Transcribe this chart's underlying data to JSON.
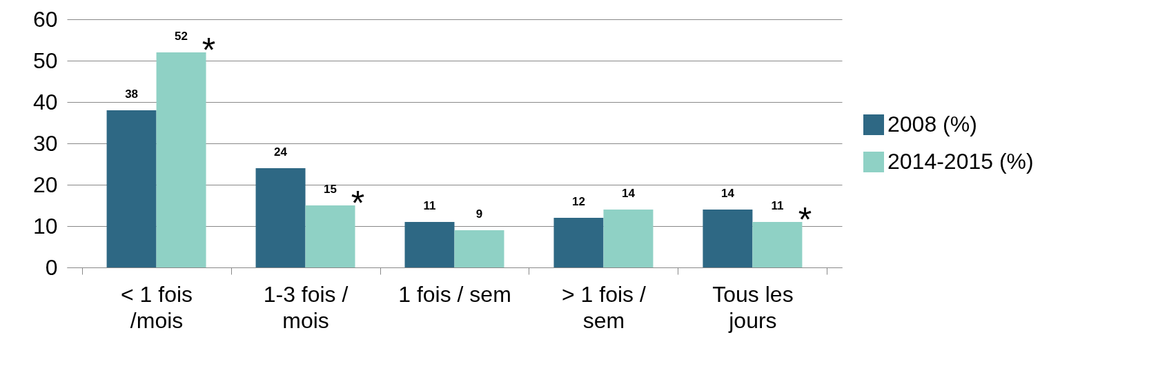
{
  "chart_data": {
    "type": "bar",
    "categories": [
      "< 1 fois /mois",
      "1-3 fois / mois",
      "1 fois / sem",
      "> 1 fois / sem",
      "Tous les jours"
    ],
    "series": [
      {
        "name": "2008 (%)",
        "color": "#2e6884",
        "values": [
          38,
          24,
          11,
          12,
          14
        ]
      },
      {
        "name": "2014-2015 (%)",
        "color": "#8fd1c5",
        "values": [
          52,
          15,
          9,
          14,
          11
        ]
      }
    ],
    "ylim": [
      0,
      60
    ],
    "yticks": [
      0,
      10,
      20,
      30,
      40,
      50,
      60
    ],
    "grid": "y",
    "legend": "right",
    "data_labels": true,
    "annotations": [
      {
        "text": "*",
        "x": "< 1 fois /mois",
        "y": 52
      },
      {
        "text": "*",
        "x": "1-3 fois / mois",
        "y": 15
      },
      {
        "text": "*",
        "x": "Tous les jours",
        "y": 11
      }
    ]
  }
}
